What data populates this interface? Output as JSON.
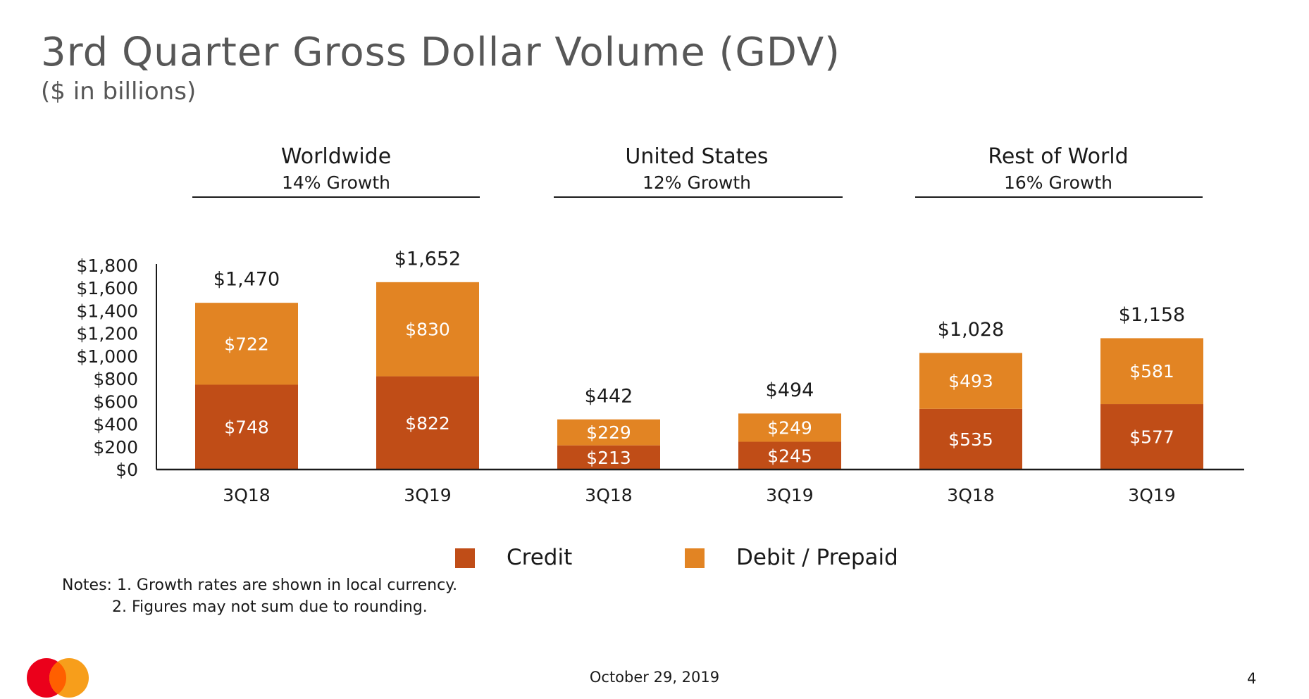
{
  "title": "3rd Quarter Gross Dollar Volume (GDV)",
  "subtitle": "($ in billions)",
  "groups": [
    {
      "name": "Worldwide",
      "growth": "14% Growth"
    },
    {
      "name": "United States",
      "growth": "12% Growth"
    },
    {
      "name": "Rest of World",
      "growth": "16% Growth"
    }
  ],
  "chart_data": {
    "type": "bar",
    "stacked": true,
    "categories": [
      "3Q18",
      "3Q19",
      "3Q18",
      "3Q19",
      "3Q18",
      "3Q19"
    ],
    "series": [
      {
        "name": "Credit",
        "values": [
          748,
          822,
          213,
          245,
          535,
          577
        ],
        "labels": [
          "$748",
          "$822",
          "$213",
          "$245",
          "$535",
          "$577"
        ],
        "color": "#c04d17"
      },
      {
        "name": "Debit / Prepaid",
        "values": [
          722,
          830,
          229,
          249,
          493,
          581
        ],
        "labels": [
          "$722",
          "$830",
          "$229",
          "$249",
          "$493",
          "$581"
        ],
        "color": "#e28423"
      }
    ],
    "totals": [
      1470,
      1652,
      442,
      494,
      1028,
      1158
    ],
    "total_labels": [
      "$1,470",
      "$1,652",
      "$442",
      "$494",
      "$1,028",
      "$1,158"
    ],
    "yticks": [
      "$0",
      "$200",
      "$400",
      "$600",
      "$800",
      "$1,000",
      "$1,200",
      "$1,400",
      "$1,600",
      "$1,800"
    ],
    "ylim": [
      0,
      1800
    ],
    "xlabel": "",
    "ylabel": "",
    "grid": false,
    "legend_position": "bottom-center"
  },
  "legend": [
    {
      "label": "Credit",
      "color": "#c04d17"
    },
    {
      "label": "Debit / Prepaid",
      "color": "#e28423"
    }
  ],
  "notes": {
    "line1": "Notes: 1.  Growth rates are shown in local currency.",
    "line2": "2.  Figures may not sum due to rounding."
  },
  "footer": {
    "date": "October 29, 2019",
    "page": "4"
  },
  "logo_colors": {
    "left": "#eb001b",
    "right": "#f79e1b",
    "overlap": "#ff5f00"
  }
}
